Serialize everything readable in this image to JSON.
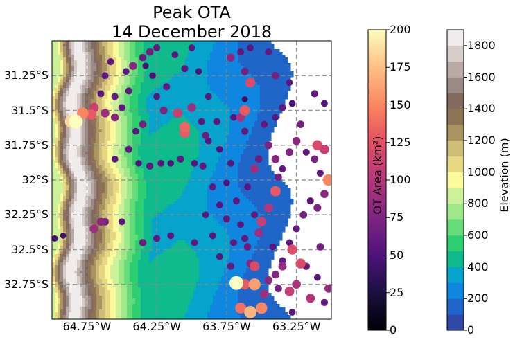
{
  "title": {
    "line1": "Peak OTA",
    "line2": "14 December 2018"
  },
  "map": {
    "lat_ticks": [
      {
        "value": -31.25,
        "label": "31.25°S"
      },
      {
        "value": -31.5,
        "label": "31.5°S"
      },
      {
        "value": -31.75,
        "label": "31.75°S"
      },
      {
        "value": -32.0,
        "label": "32°S"
      },
      {
        "value": -32.25,
        "label": "32.25°S"
      },
      {
        "value": -32.5,
        "label": "32.5°S"
      },
      {
        "value": -32.75,
        "label": "32.75°S"
      }
    ],
    "lon_ticks": [
      {
        "value": -64.75,
        "label": "64.75°W"
      },
      {
        "value": -64.25,
        "label": "64.25°W"
      },
      {
        "value": -63.75,
        "label": "63.75°W"
      },
      {
        "value": -63.25,
        "label": "63.25°W"
      }
    ],
    "lon_range": [
      -65.0,
      -63.0
    ],
    "lat_range": [
      -33.0,
      -31.0
    ],
    "grid": true
  },
  "ota_colorbar": {
    "label": "OT Area (km²)",
    "colormap": "magma",
    "range": [
      0,
      200
    ],
    "ticks": [
      "0",
      "25",
      "50",
      "75",
      "100",
      "125",
      "150",
      "175",
      "200"
    ]
  },
  "elevation_colorbar": {
    "label": "Elevation (m)",
    "range": [
      0,
      1900
    ],
    "ticks": [
      "0",
      "200",
      "400",
      "600",
      "800",
      "1000",
      "1200",
      "1400",
      "1600",
      "1800"
    ],
    "level_colors": [
      "#2f4aa6",
      "#1f66c8",
      "#0f87e0",
      "#06a4cc",
      "#0fba8c",
      "#2ecf72",
      "#66dd7a",
      "#9ee88a",
      "#cdf09a",
      "#fbfa9c",
      "#e8d884",
      "#ccbd78",
      "#ab9462",
      "#8e7356",
      "#84695e",
      "#9a8a86",
      "#b9aaa6",
      "#d6cdca",
      "#f0ecec"
    ]
  },
  "chart_data": {
    "type": "scatter",
    "description_fields": [
      "lon",
      "lat",
      "ota_km2"
    ],
    "points": [
      [
        -64.83,
        -31.58,
        200
      ],
      [
        -64.86,
        -31.58,
        185
      ],
      [
        -64.78,
        -31.52,
        150
      ],
      [
        -64.72,
        -31.53,
        130
      ],
      [
        -64.7,
        -31.48,
        110
      ],
      [
        -64.62,
        -31.52,
        90
      ],
      [
        -64.55,
        -31.55,
        80
      ],
      [
        -64.5,
        -31.48,
        60
      ],
      [
        -64.45,
        -31.36,
        60
      ],
      [
        -64.47,
        -31.22,
        55
      ],
      [
        -64.42,
        -31.18,
        80
      ],
      [
        -64.35,
        -31.12,
        65
      ],
      [
        -64.3,
        -31.08,
        70
      ],
      [
        -64.33,
        -31.18,
        45
      ],
      [
        -64.28,
        -31.25,
        50
      ],
      [
        -64.25,
        -31.4,
        55
      ],
      [
        -64.18,
        -31.33,
        60
      ],
      [
        -64.12,
        -31.1,
        55
      ],
      [
        -64.05,
        -31.2,
        60
      ],
      [
        -64.2,
        -31.5,
        75
      ],
      [
        -64.1,
        -31.52,
        110
      ],
      [
        -64.05,
        -31.62,
        135
      ],
      [
        -64.05,
        -31.66,
        130
      ],
      [
        -64.0,
        -31.48,
        90
      ],
      [
        -63.93,
        -31.58,
        60
      ],
      [
        -63.9,
        -31.68,
        65
      ],
      [
        -64.35,
        -31.6,
        70
      ],
      [
        -64.4,
        -31.65,
        55
      ],
      [
        -64.45,
        -31.78,
        60
      ],
      [
        -64.55,
        -31.85,
        55
      ],
      [
        -64.38,
        -31.88,
        50
      ],
      [
        -64.3,
        -31.9,
        60
      ],
      [
        -64.22,
        -31.88,
        55
      ],
      [
        -64.15,
        -31.88,
        50
      ],
      [
        -64.08,
        -31.85,
        60
      ],
      [
        -63.98,
        -31.88,
        55
      ],
      [
        -63.92,
        -31.9,
        60
      ],
      [
        -63.88,
        -31.72,
        55
      ],
      [
        -63.8,
        -31.78,
        50
      ],
      [
        -63.72,
        -31.88,
        55
      ],
      [
        -63.85,
        -32.05,
        60
      ],
      [
        -63.8,
        -32.18,
        55
      ],
      [
        -63.75,
        -32.28,
        60
      ],
      [
        -63.75,
        -32.02,
        50
      ],
      [
        -63.62,
        -31.5,
        130
      ],
      [
        -63.65,
        -31.55,
        95
      ],
      [
        -63.62,
        -31.65,
        60
      ],
      [
        -63.7,
        -31.55,
        55
      ],
      [
        -63.62,
        -31.22,
        70
      ],
      [
        -63.65,
        -31.08,
        60
      ],
      [
        -63.58,
        -31.3,
        120
      ],
      [
        -63.62,
        -31.42,
        40
      ],
      [
        -64.7,
        -32.35,
        90
      ],
      [
        -64.65,
        -32.3,
        80
      ],
      [
        -64.62,
        -32.3,
        70
      ],
      [
        -64.5,
        -32.3,
        55
      ],
      [
        -64.35,
        -32.45,
        65
      ],
      [
        -64.25,
        -32.42,
        60
      ],
      [
        -64.15,
        -32.4,
        55
      ],
      [
        -63.98,
        -32.45,
        60
      ],
      [
        -63.85,
        -32.4,
        55
      ],
      [
        -63.7,
        -32.45,
        60
      ],
      [
        -63.62,
        -32.42,
        60
      ],
      [
        -63.6,
        -32.48,
        65
      ],
      [
        -63.58,
        -32.6,
        80
      ],
      [
        -63.55,
        -32.62,
        120
      ],
      [
        -63.5,
        -32.3,
        110
      ],
      [
        -63.52,
        -32.38,
        90
      ],
      [
        -63.45,
        -32.2,
        100
      ],
      [
        -63.4,
        -32.08,
        130
      ],
      [
        -63.38,
        -31.98,
        70
      ],
      [
        -63.35,
        -31.92,
        60
      ],
      [
        -63.4,
        -31.85,
        80
      ],
      [
        -63.45,
        -31.75,
        75
      ],
      [
        -63.52,
        -31.85,
        65
      ],
      [
        -63.55,
        -31.92,
        90
      ],
      [
        -63.48,
        -31.6,
        60
      ],
      [
        -63.4,
        -31.55,
        55
      ],
      [
        -63.35,
        -31.48,
        60
      ],
      [
        -63.28,
        -31.45,
        50
      ],
      [
        -63.22,
        -31.6,
        70
      ],
      [
        -63.25,
        -31.72,
        80
      ],
      [
        -63.3,
        -31.8,
        75
      ],
      [
        -63.18,
        -31.8,
        60
      ],
      [
        -63.1,
        -31.75,
        120
      ],
      [
        -63.05,
        -31.78,
        110
      ],
      [
        -63.12,
        -31.85,
        70
      ],
      [
        -63.08,
        -31.95,
        60
      ],
      [
        -63.02,
        -32.0,
        150
      ],
      [
        -63.05,
        -32.1,
        80
      ],
      [
        -63.1,
        -32.2,
        75
      ],
      [
        -63.15,
        -32.15,
        60
      ],
      [
        -63.2,
        -32.25,
        70
      ],
      [
        -63.25,
        -32.35,
        60
      ],
      [
        -63.3,
        -32.45,
        55
      ],
      [
        -63.22,
        -32.6,
        120
      ],
      [
        -63.25,
        -32.75,
        95
      ],
      [
        -63.3,
        -32.8,
        110
      ],
      [
        -63.38,
        -32.78,
        70
      ],
      [
        -63.45,
        -32.72,
        80
      ],
      [
        -63.55,
        -32.75,
        160
      ],
      [
        -63.62,
        -32.75,
        130
      ],
      [
        -63.68,
        -32.74,
        200
      ],
      [
        -63.65,
        -32.92,
        140
      ],
      [
        -63.58,
        -32.95,
        170
      ],
      [
        -63.5,
        -32.92,
        150
      ],
      [
        -63.48,
        -32.82,
        90
      ],
      [
        -63.4,
        -32.68,
        75
      ],
      [
        -63.15,
        -32.85,
        100
      ],
      [
        -63.05,
        -32.88,
        60
      ],
      [
        -63.1,
        -32.7,
        55
      ],
      [
        -63.02,
        -32.78,
        85
      ],
      [
        -63.18,
        -32.62,
        65
      ],
      [
        -63.35,
        -32.58,
        60
      ],
      [
        -63.28,
        -32.95,
        55
      ],
      [
        -63.08,
        -32.48,
        70
      ],
      [
        -63.72,
        -31.12,
        80
      ],
      [
        -63.58,
        -31.05,
        55
      ],
      [
        -63.45,
        -31.08,
        60
      ],
      [
        -63.4,
        -31.25,
        70
      ],
      [
        -63.3,
        -31.3,
        55
      ],
      [
        -63.12,
        -31.38,
        60
      ],
      [
        -63.05,
        -31.45,
        55
      ],
      [
        -64.58,
        -31.15,
        60
      ],
      [
        -64.62,
        -31.25,
        55
      ],
      [
        -64.55,
        -31.4,
        60
      ],
      [
        -64.65,
        -31.38,
        55
      ],
      [
        -64.25,
        -31.05,
        60
      ],
      [
        -64.0,
        -31.05,
        55
      ],
      [
        -63.95,
        -31.22,
        50
      ],
      [
        -63.88,
        -31.4,
        55
      ],
      [
        -63.82,
        -31.58,
        60
      ],
      [
        -64.92,
        -32.4,
        40
      ],
      [
        -64.98,
        -32.42,
        45
      ],
      [
        -63.9,
        -32.25,
        55
      ],
      [
        -63.68,
        -32.15,
        60
      ],
      [
        -63.6,
        -32.05,
        55
      ],
      [
        -63.55,
        -32.25,
        60
      ],
      [
        -63.65,
        -32.32,
        55
      ],
      [
        -63.72,
        -32.62,
        60
      ],
      [
        -63.8,
        -32.55,
        55
      ],
      [
        -63.35,
        -32.62,
        85
      ],
      [
        -63.28,
        -32.5,
        120
      ],
      [
        -63.42,
        -32.48,
        55
      ]
    ]
  }
}
